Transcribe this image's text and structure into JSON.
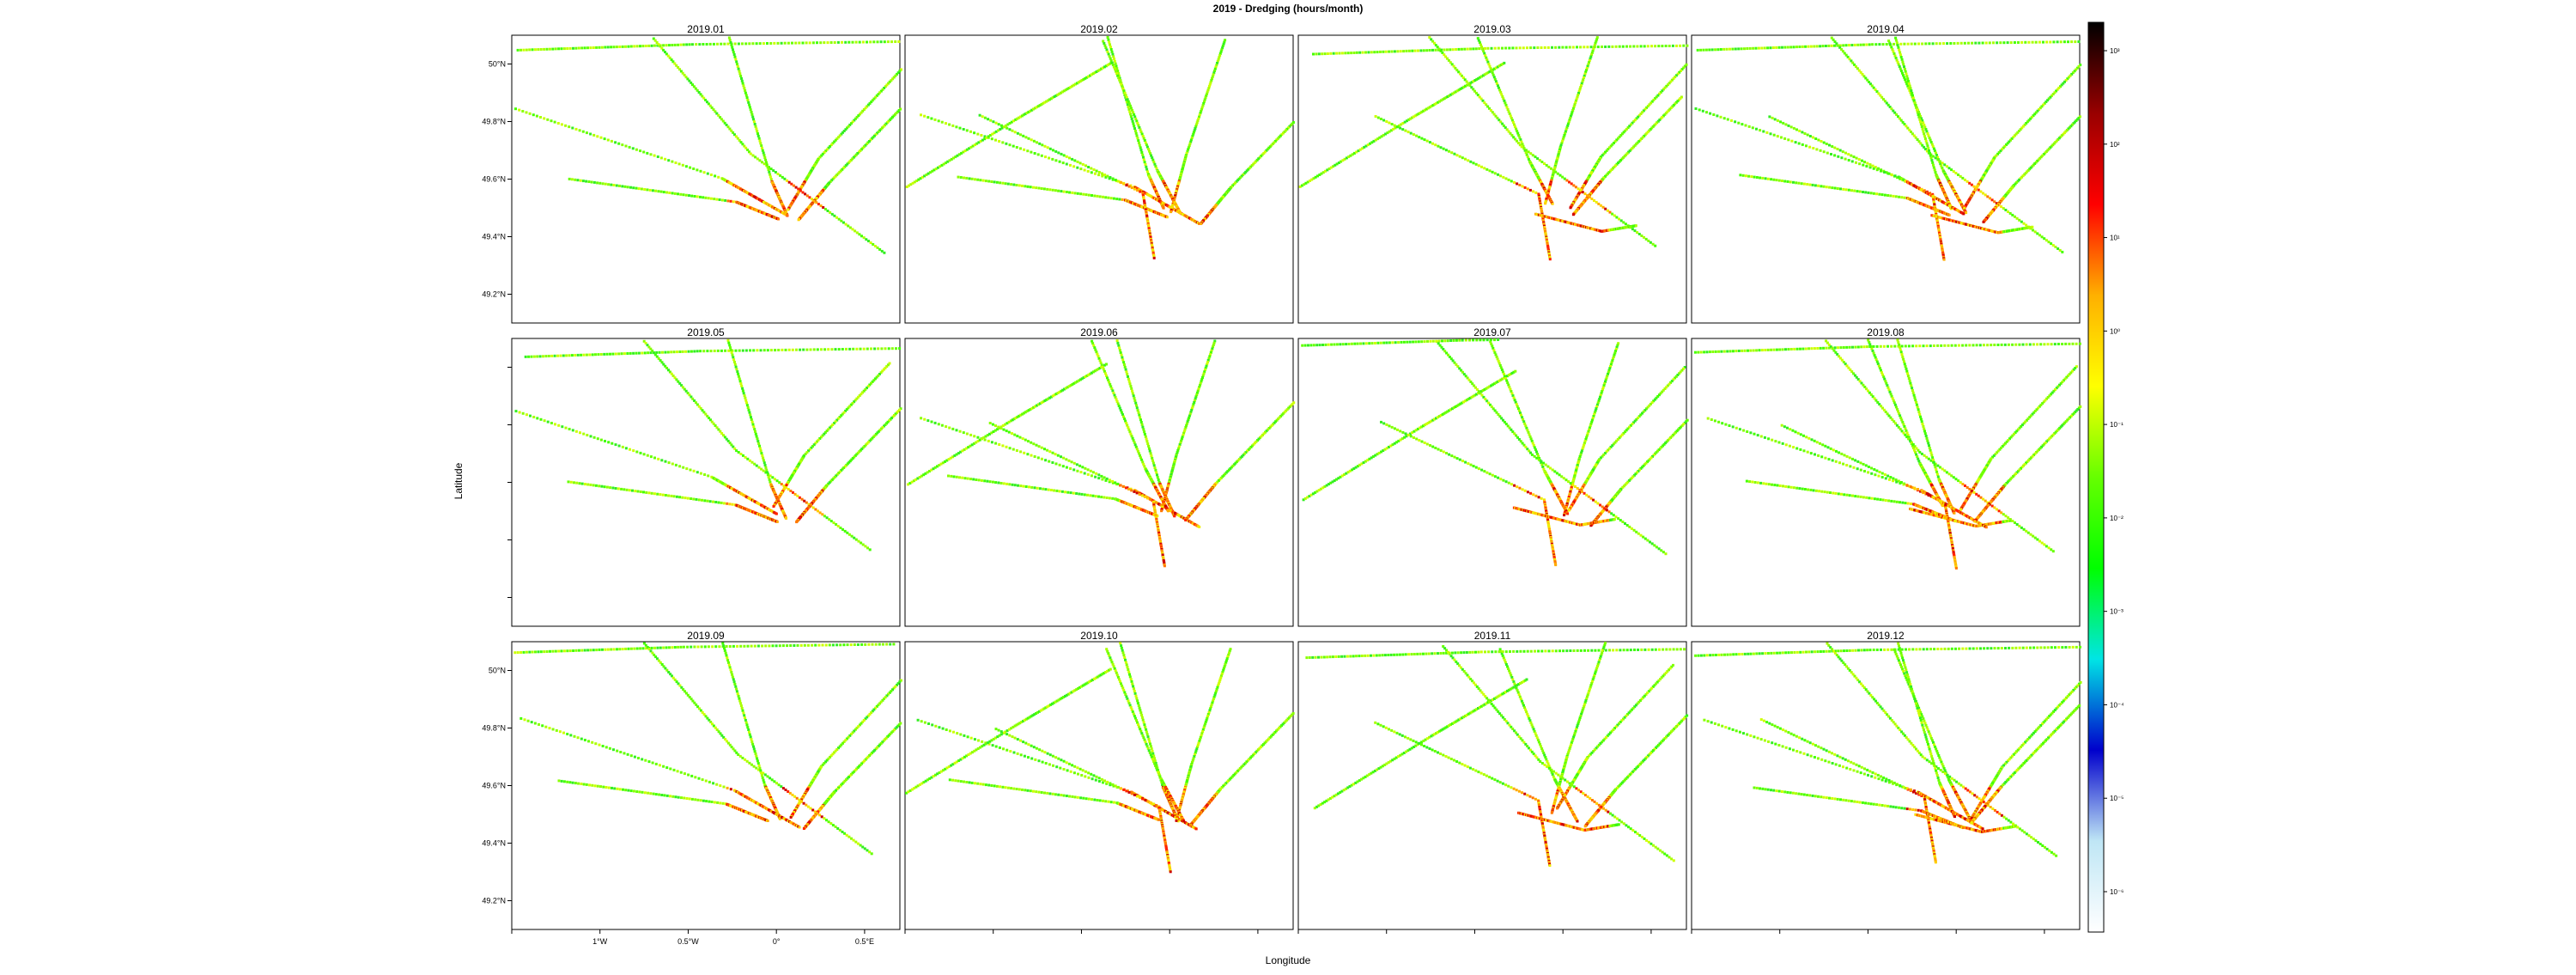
{
  "chart_data": {
    "type": "heatmap",
    "title": "2019 - Dredging (hours/month)",
    "xlabel": "Longitude",
    "ylabel": "Latitude",
    "panels": [
      "2019.01",
      "2019.02",
      "2019.03",
      "2019.04",
      "2019.05",
      "2019.06",
      "2019.07",
      "2019.08",
      "2019.09",
      "2019.10",
      "2019.11",
      "2019.12"
    ],
    "xlim": [
      -1.5,
      0.7
    ],
    "ylim": [
      49.1,
      50.1
    ],
    "x_ticks": [
      {
        "value": -1.5,
        "label": ""
      },
      {
        "value": -1.0,
        "label": "1°W"
      },
      {
        "value": -0.5,
        "label": "0.5°W"
      },
      {
        "value": 0.0,
        "label": "0°"
      },
      {
        "value": 0.5,
        "label": "0.5°E"
      }
    ],
    "y_ticks": [
      {
        "value": 49.2,
        "label": "49.2°N"
      },
      {
        "value": 49.4,
        "label": "49.4°N"
      },
      {
        "value": 49.6,
        "label": "49.6°N"
      },
      {
        "value": 49.8,
        "label": "49.8°N"
      },
      {
        "value": 50.0,
        "label": "50°N"
      }
    ],
    "colorbar": {
      "scale": "log10",
      "ticks": [
        "10⁻⁶",
        "10⁻⁵",
        "10⁻⁴",
        "10⁻³",
        "10⁻²",
        "10⁻¹",
        "10⁰",
        "10¹",
        "10²",
        "10³"
      ],
      "colors": [
        "#ffffff",
        "#bfe6f5",
        "#0000cc",
        "#00e5e5",
        "#00ff00",
        "#66ff00",
        "#ffff00",
        "#ffb000",
        "#ff0000",
        "#990000",
        "#000000"
      ]
    }
  }
}
